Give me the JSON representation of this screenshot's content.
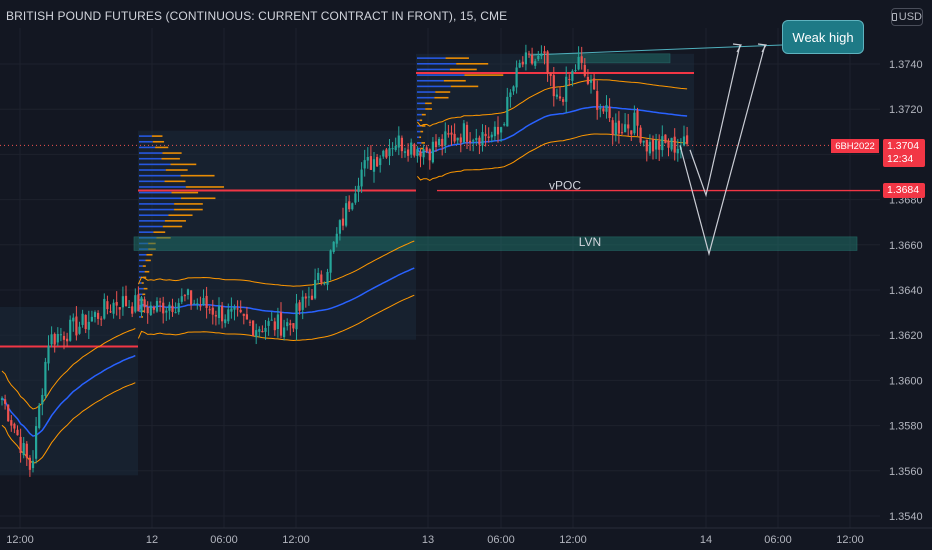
{
  "header": {
    "title": "BRITISH POUND FUTURES (CONTINUOUS: CURRENT CONTRACT IN FRONT), 15, CME",
    "currency_button": "USD"
  },
  "annotations": {
    "weak_high": "Weak high",
    "vpoc": "vPOC",
    "lvn": "LVN"
  },
  "price_tags": {
    "symbol": "6BH2022",
    "last_price": "1.3704",
    "countdown": "12:34",
    "level_price": "1.3684"
  },
  "colors": {
    "background": "#131722",
    "up_candle": "#26a69a",
    "down_candle": "#ef5350",
    "vwap": "#2962ff",
    "volume_profile": "#ff9800",
    "poc_line": "#f23645",
    "lvn_zone": "#1e6e66",
    "weak_high_box": "#1e7a86"
  },
  "chart_data": {
    "type": "candlestick",
    "title": "BRITISH POUND FUTURES (CONTINUOUS: CURRENT CONTRACT IN FRONT), 15, CME",
    "interval": "15",
    "y_ticks": [
      "1.3740",
      "1.3720",
      "1.3700",
      "1.3680",
      "1.3660",
      "1.3640",
      "1.3620",
      "1.3600",
      "1.3580",
      "1.3560",
      "1.3540"
    ],
    "ylim": [
      1.3533,
      1.3758
    ],
    "x_ticks": [
      "12:00",
      "12",
      "06:00",
      "12:00",
      "13",
      "06:00",
      "12:00",
      "14",
      "06:00",
      "12:00"
    ],
    "approx_close_path": [
      {
        "t": "11 09:00",
        "p": 1.3612
      },
      {
        "t": "11 10:30",
        "p": 1.3598
      },
      {
        "t": "11 12:00",
        "p": 1.358
      },
      {
        "t": "11 13:30",
        "p": 1.356
      },
      {
        "t": "11 15:00",
        "p": 1.3618
      },
      {
        "t": "11 18:00",
        "p": 1.3625
      },
      {
        "t": "11 21:00",
        "p": 1.3635
      },
      {
        "t": "12 00:00",
        "p": 1.3632
      },
      {
        "t": "12 03:00",
        "p": 1.3636
      },
      {
        "t": "12 06:00",
        "p": 1.363
      },
      {
        "t": "12 09:00",
        "p": 1.3624
      },
      {
        "t": "12 12:00",
        "p": 1.3625
      },
      {
        "t": "12 15:00",
        "p": 1.3648
      },
      {
        "t": "12 18:00",
        "p": 1.3692
      },
      {
        "t": "12 21:00",
        "p": 1.3706
      },
      {
        "t": "13 00:00",
        "p": 1.3702
      },
      {
        "t": "13 03:00",
        "p": 1.371
      },
      {
        "t": "13 06:00",
        "p": 1.3708
      },
      {
        "t": "13 08:00",
        "p": 1.374
      },
      {
        "t": "13 10:00",
        "p": 1.3742
      },
      {
        "t": "13 11:00",
        "p": 1.3722
      },
      {
        "t": "13 12:00",
        "p": 1.373
      },
      {
        "t": "13 13:00",
        "p": 1.3741
      },
      {
        "t": "13 14:00",
        "p": 1.373
      },
      {
        "t": "13 16:00",
        "p": 1.3712
      },
      {
        "t": "13 18:00",
        "p": 1.3714
      },
      {
        "t": "13 19:00",
        "p": 1.3704
      }
    ],
    "levels": [
      {
        "label": "vPOC",
        "price": 1.3684
      },
      {
        "label": "LVN",
        "price": 1.3661
      },
      {
        "label": "Weak high",
        "price": 1.3744
      }
    ],
    "last_price": 1.3704
  }
}
